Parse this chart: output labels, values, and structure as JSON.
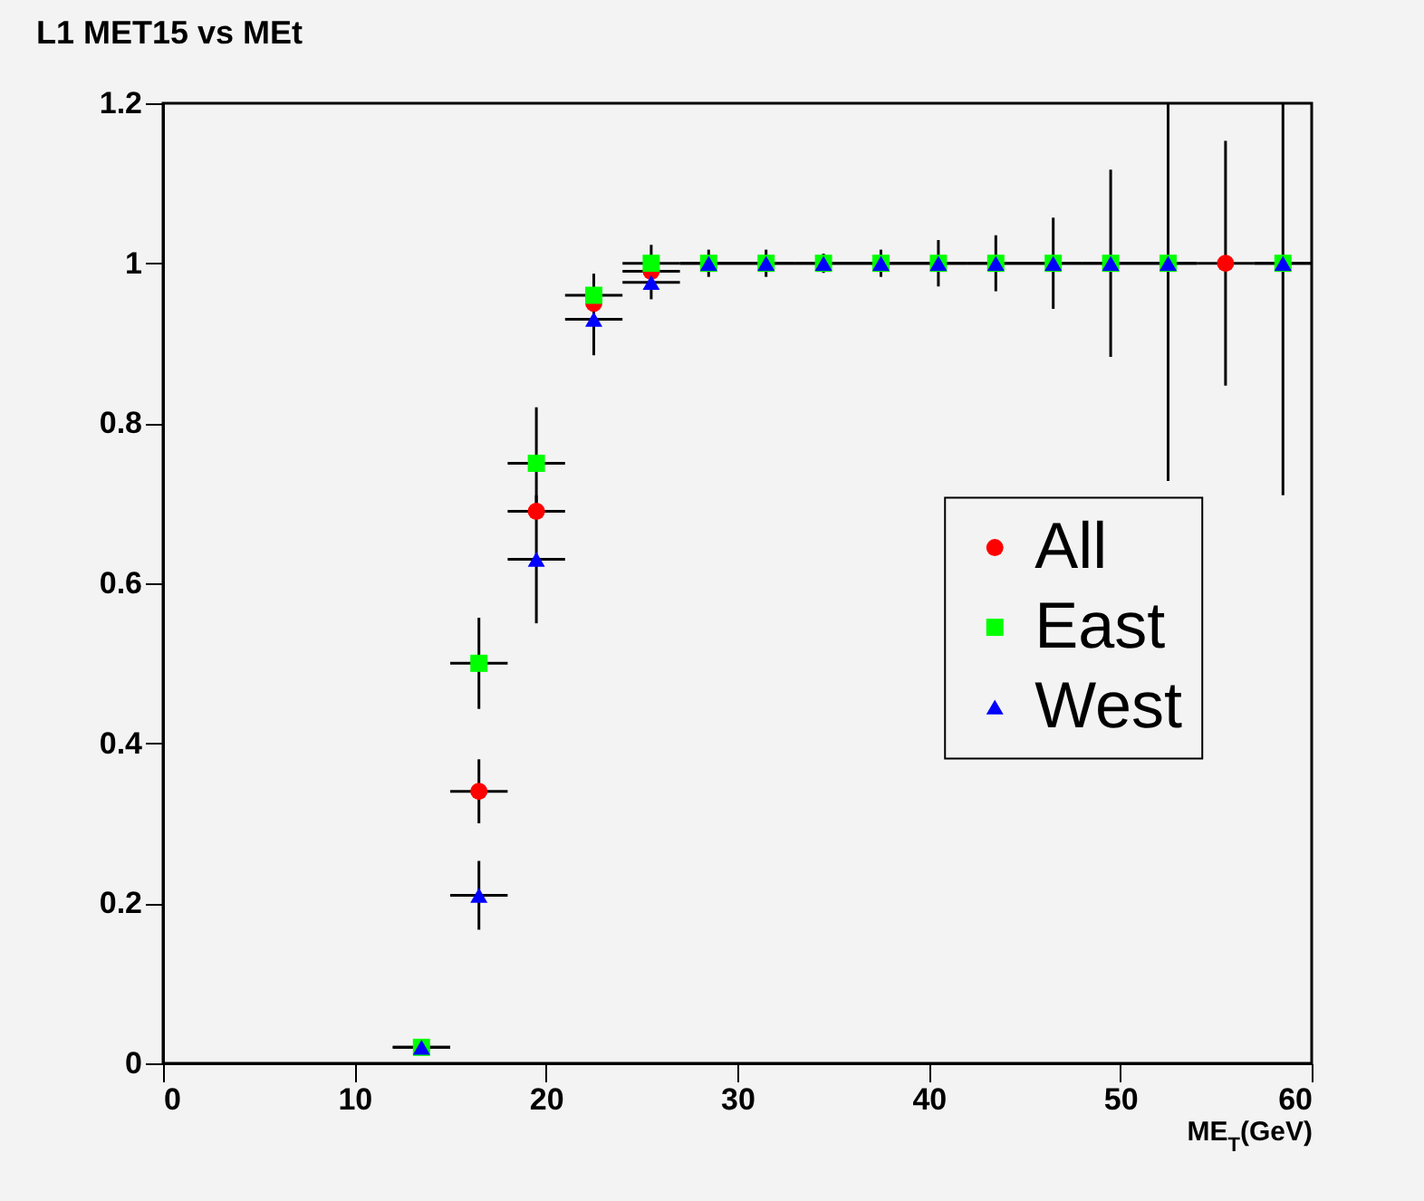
{
  "chart_data": {
    "type": "scatter",
    "title": "L1 MET15 vs MEt",
    "xlabel": "ME$_{T}$(GeV)",
    "x": [
      13.5,
      16.5,
      19.5,
      22.5,
      25.5,
      28.5,
      31.5,
      34.5,
      37.5,
      40.5,
      43.5,
      46.5,
      49.5,
      52.5,
      55.5,
      58.5
    ],
    "series": [
      {
        "name": "All",
        "color": "#ff0000",
        "marker": "circle",
        "values": [
          null,
          0.34,
          0.69,
          0.95,
          0.99,
          null,
          null,
          null,
          null,
          null,
          null,
          null,
          null,
          null,
          1,
          null
        ],
        "errors": [
          null,
          0.04,
          null,
          null,
          null,
          null,
          null,
          null,
          null,
          null,
          null,
          null,
          null,
          null,
          0.153,
          null
        ],
        "xerrors": [
          null,
          1.5,
          1.5,
          null,
          1.5,
          null,
          null,
          null,
          null,
          null,
          null,
          null,
          null,
          null,
          1.5,
          null
        ]
      },
      {
        "name": "East",
        "color": "#00ff00",
        "marker": "square",
        "values": [
          0.02,
          0.5,
          0.75,
          0.96,
          1,
          1,
          1,
          1,
          1,
          1,
          1,
          1,
          1,
          1,
          null,
          1
        ],
        "errors": [
          null,
          0.057,
          0.07,
          0.027,
          0.023,
          null,
          null,
          null,
          null,
          null,
          null,
          null,
          null,
          null,
          null,
          null
        ],
        "xerrors": [
          1.5,
          1.5,
          1.5,
          1.5,
          1.5,
          1.5,
          1.5,
          1.5,
          1.5,
          1.5,
          1.5,
          1.5,
          1.5,
          1.5,
          null,
          1.5
        ]
      },
      {
        "name": "West",
        "color": "#0000ff",
        "marker": "triangle",
        "values": [
          0.02,
          0.21,
          0.63,
          0.93,
          0.976,
          1,
          1,
          1,
          1,
          1,
          1,
          1,
          1,
          1,
          null,
          1
        ],
        "errors": [
          null,
          0.043,
          0.08,
          0.045,
          0.021,
          0.017,
          0.017,
          0.012,
          0.017,
          0.029,
          0.035,
          0.057,
          0.117,
          [
            0.728,
            1.2
          ],
          null,
          [
            0.71,
            1.2
          ]
        ],
        "xerrors": [
          1.5,
          1.5,
          1.5,
          1.5,
          1.5,
          1.5,
          1.5,
          1.5,
          1.5,
          1.5,
          1.5,
          1.5,
          1.5,
          1.5,
          null,
          1.5
        ]
      }
    ],
    "xlim": [
      0,
      60
    ],
    "xticks": [
      0,
      10,
      20,
      30,
      40,
      50,
      60
    ],
    "ylim": [
      0,
      1.2
    ],
    "yticks": [
      0,
      0.2,
      0.4,
      0.6,
      0.8,
      1,
      1.2
    ],
    "legend": "right",
    "grid": false
  }
}
